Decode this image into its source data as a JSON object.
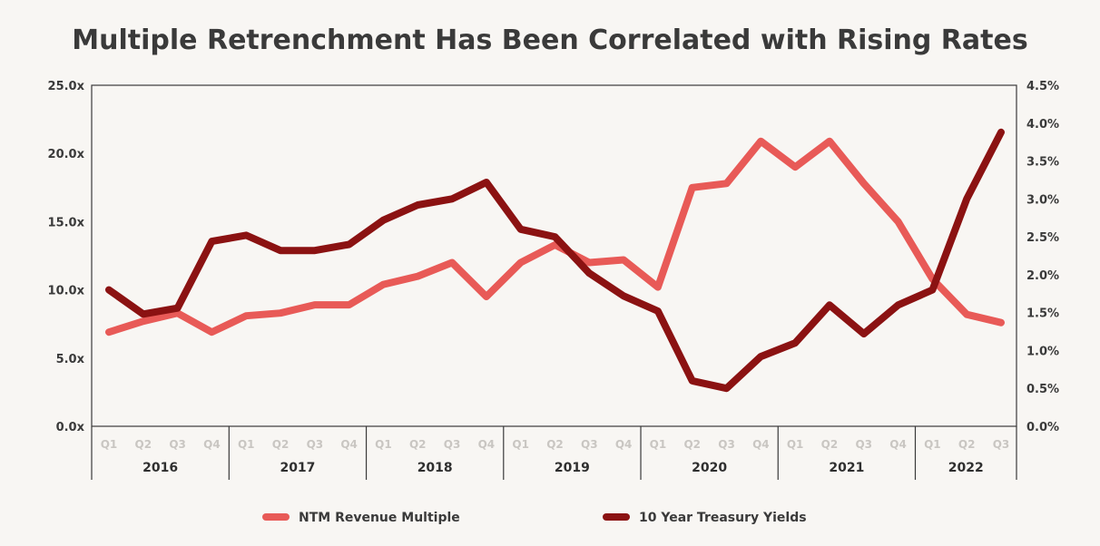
{
  "chart_data": {
    "type": "line",
    "title": "Multiple Retrenchment Has Been Correlated with Rising Rates",
    "colors": {
      "primary": "#e85a57",
      "secondary": "#8b1212",
      "axis": "#3a3a3a",
      "quarter_label": "#c9c6c2"
    },
    "y_left": {
      "ylim": [
        0,
        25
      ],
      "ticks": [
        0,
        5,
        10,
        15,
        20,
        25
      ],
      "tick_labels": [
        "0.0x",
        "5.0x",
        "10.0x",
        "15.0x",
        "20.0x",
        "25.0x"
      ]
    },
    "y_right": {
      "ylim": [
        0,
        4.5
      ],
      "ticks": [
        0,
        0.5,
        1.0,
        1.5,
        2.0,
        2.5,
        3.0,
        3.5,
        4.0,
        4.5
      ],
      "tick_labels": [
        "0.0%",
        "0.5%",
        "1.0%",
        "1.5%",
        "2.0%",
        "2.5%",
        "3.0%",
        "3.5%",
        "4.0%",
        "4.5%"
      ]
    },
    "categories": [
      "Q1",
      "Q2",
      "Q3",
      "Q4",
      "Q1",
      "Q2",
      "Q3",
      "Q4",
      "Q1",
      "Q2",
      "Q3",
      "Q4",
      "Q1",
      "Q2",
      "Q3",
      "Q4",
      "Q1",
      "Q2",
      "Q3",
      "Q4",
      "Q1",
      "Q2",
      "Q3",
      "Q4",
      "Q1",
      "Q2",
      "Q3"
    ],
    "years": [
      {
        "label": "2016",
        "quarters": 4
      },
      {
        "label": "2017",
        "quarters": 4
      },
      {
        "label": "2018",
        "quarters": 4
      },
      {
        "label": "2019",
        "quarters": 4
      },
      {
        "label": "2020",
        "quarters": 4
      },
      {
        "label": "2021",
        "quarters": 4
      },
      {
        "label": "2022",
        "quarters": 3
      }
    ],
    "series": [
      {
        "name": "NTM Revenue Multiple",
        "axis": "left",
        "color": "#e85a57",
        "values": [
          6.9,
          7.7,
          8.3,
          6.9,
          8.1,
          8.3,
          8.9,
          8.9,
          10.4,
          11.0,
          12.0,
          9.5,
          12.0,
          13.3,
          12.0,
          12.2,
          10.2,
          17.5,
          17.8,
          20.9,
          19.0,
          20.9,
          17.8,
          15.0,
          10.8,
          8.2,
          7.6
        ]
      },
      {
        "name": "10 Year Treasury Yields",
        "axis": "right",
        "color": "#8b1212",
        "values": [
          1.8,
          1.48,
          1.56,
          2.44,
          2.52,
          2.32,
          2.32,
          2.4,
          2.72,
          2.92,
          3.0,
          3.22,
          2.6,
          2.5,
          2.02,
          1.72,
          1.52,
          0.6,
          0.5,
          0.92,
          1.1,
          1.6,
          1.22,
          1.6,
          1.8,
          3.0,
          3.88
        ]
      }
    ],
    "legend_position": "bottom-center"
  }
}
